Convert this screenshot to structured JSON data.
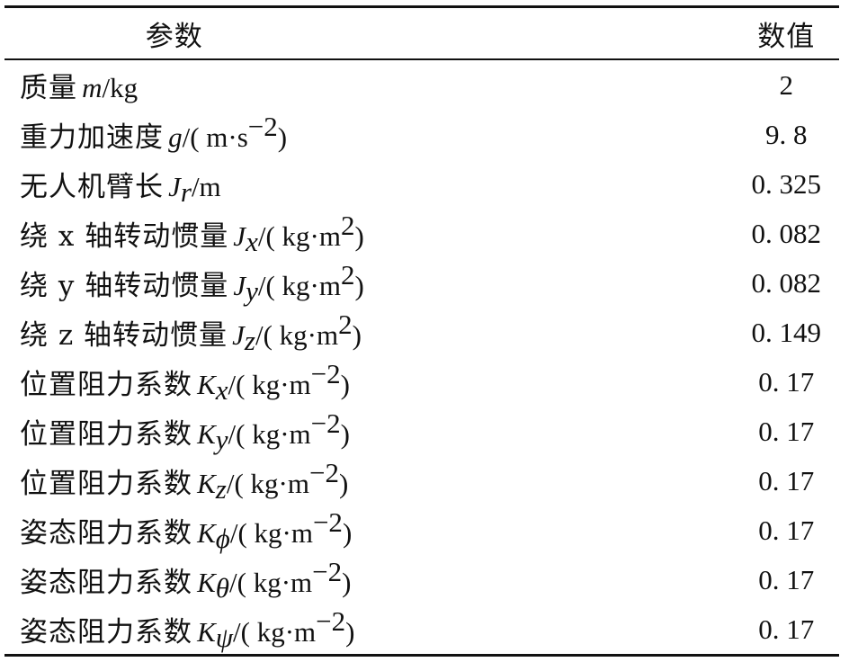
{
  "header": {
    "param": "参数",
    "value": "数值"
  },
  "rows": [
    {
      "name": "质量",
      "sym": "m",
      "sub": "",
      "unit_pre": "/kg",
      "unit_sup": "",
      "unit_post": "",
      "value": "2"
    },
    {
      "name": "重力加速度",
      "sym": "g",
      "sub": "",
      "unit_pre": "/( m·s",
      "unit_sup": "−2",
      "unit_post": ")",
      "value": "9. 8"
    },
    {
      "name": "无人机臂长",
      "sym": "J",
      "sub": "r",
      "unit_pre": "/m",
      "unit_sup": "",
      "unit_post": "",
      "value": "0. 325"
    },
    {
      "name": "绕 x 轴转动惯量",
      "sym": "J",
      "sub": "x",
      "unit_pre": "/( kg·m",
      "unit_sup": "2",
      "unit_post": ")",
      "value": "0. 082"
    },
    {
      "name": "绕 y 轴转动惯量",
      "sym": "J",
      "sub": "y",
      "unit_pre": "/( kg·m",
      "unit_sup": "2",
      "unit_post": ")",
      "value": "0. 082"
    },
    {
      "name": "绕 z 轴转动惯量",
      "sym": "J",
      "sub": "z",
      "unit_pre": "/( kg·m",
      "unit_sup": "2",
      "unit_post": ")",
      "value": "0. 149"
    },
    {
      "name": "位置阻力系数",
      "sym": "K",
      "sub": "x",
      "unit_pre": "/( kg·m",
      "unit_sup": "−2",
      "unit_post": ")",
      "value": "0. 17"
    },
    {
      "name": "位置阻力系数",
      "sym": "K",
      "sub": "y",
      "unit_pre": "/( kg·m",
      "unit_sup": "−2",
      "unit_post": ")",
      "value": "0. 17"
    },
    {
      "name": "位置阻力系数",
      "sym": "K",
      "sub": "z",
      "unit_pre": "/( kg·m",
      "unit_sup": "−2",
      "unit_post": ")",
      "value": "0. 17"
    },
    {
      "name": "姿态阻力系数",
      "sym": "K",
      "sub": "ϕ",
      "unit_pre": "/( kg·m",
      "unit_sup": "−2",
      "unit_post": ")",
      "value": "0. 17"
    },
    {
      "name": "姿态阻力系数",
      "sym": "K",
      "sub": "θ",
      "unit_pre": "/( kg·m",
      "unit_sup": "−2",
      "unit_post": ")",
      "value": "0. 17"
    },
    {
      "name": "姿态阻力系数",
      "sym": "K",
      "sub": "ψ",
      "unit_pre": "/( kg·m",
      "unit_sup": "−2",
      "unit_post": ")",
      "value": "0. 17"
    }
  ]
}
